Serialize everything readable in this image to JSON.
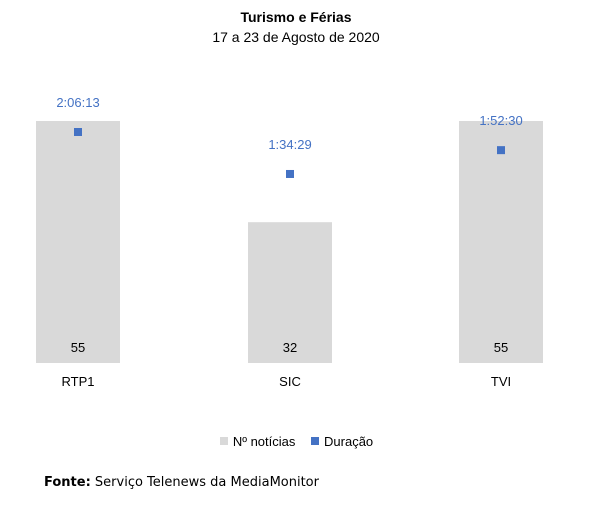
{
  "chart_data": {
    "type": "bar",
    "title": "Turismo e Férias",
    "subtitle": "17 a 23 de Agosto de 2020",
    "categories": [
      "RTP1",
      "SIC",
      "TVI"
    ],
    "series": [
      {
        "name": "Nº notícias",
        "type": "bar",
        "color": "#d9d9d9",
        "values": [
          55,
          32,
          55
        ]
      },
      {
        "name": "Duração",
        "type": "scatter",
        "color": "#4472c4",
        "values": [
          "2:06:13",
          "1:34:29",
          "1:52:30"
        ],
        "values_seconds": [
          7573,
          5669,
          6750
        ]
      }
    ],
    "legend_position": "bottom",
    "grid": false
  },
  "source": {
    "label": "Fonte:",
    "text": "Serviço Telenews da MediaMonitor"
  }
}
